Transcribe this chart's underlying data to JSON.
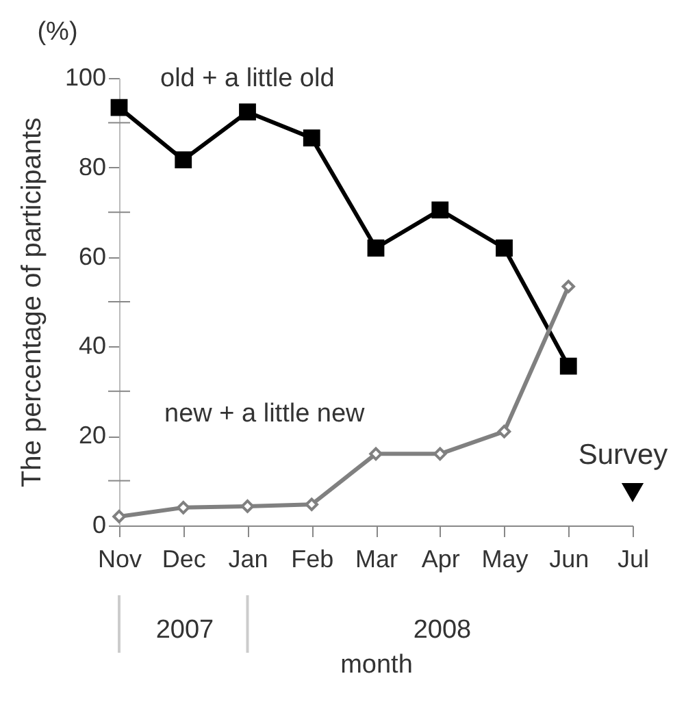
{
  "chart_data": {
    "type": "line",
    "xlabel": "month",
    "ylabel": "The percentage of participants",
    "categories": [
      "Nov",
      "Dec",
      "Jan",
      "Feb",
      "Mar",
      "Apr",
      "May",
      "Jun",
      "Jul"
    ],
    "series": [
      {
        "name": "old + a little old",
        "color": "#000000",
        "marker": "square",
        "values": [
          93.4,
          81.7,
          92.4,
          86.6,
          62,
          70.5,
          62,
          35.6,
          null
        ]
      },
      {
        "name": "new + a little new",
        "color": "#808080",
        "marker": "diamond",
        "values": [
          2,
          4,
          4.3,
          4.7,
          16,
          16,
          21,
          53.4,
          null
        ]
      }
    ],
    "ylim": [
      0,
      100
    ],
    "yticks": [
      0,
      {
        "value": 10,
        "label": null
      },
      20,
      {
        "value": 30,
        "label": null
      },
      40,
      {
        "value": 50,
        "label": null
      },
      60,
      {
        "value": 70,
        "label": null
      },
      80,
      {
        "value": 90,
        "label": null
      },
      100
    ],
    "annotations": [
      "(%)",
      "2007",
      "2008",
      "Survey"
    ],
    "grid": false,
    "line_style": "solid"
  }
}
